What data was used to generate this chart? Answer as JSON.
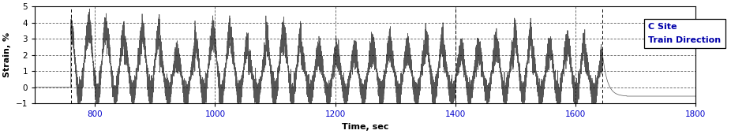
{
  "title": "",
  "xlabel": "Time, sec",
  "ylabel": "Strain, %",
  "xlim": [
    700,
    1800
  ],
  "ylim": [
    -1,
    5
  ],
  "yticks": [
    -1,
    0,
    1,
    2,
    3,
    4,
    5
  ],
  "xticks": [
    800,
    1000,
    1200,
    1400,
    1600,
    1800
  ],
  "legend_lines": [
    "C Site",
    "Train Direction"
  ],
  "legend_text_color": "#0000aa",
  "grid_color": "#000000",
  "line_color": "#555555",
  "bg_color": "#ffffff",
  "figsize": [
    9.26,
    1.7
  ],
  "dpi": 100,
  "signal_start": 760,
  "signal_end": 1645,
  "flat_value": -0.55,
  "num_oscillations": 30,
  "vertical_lines": [
    760,
    1400,
    1645
  ]
}
